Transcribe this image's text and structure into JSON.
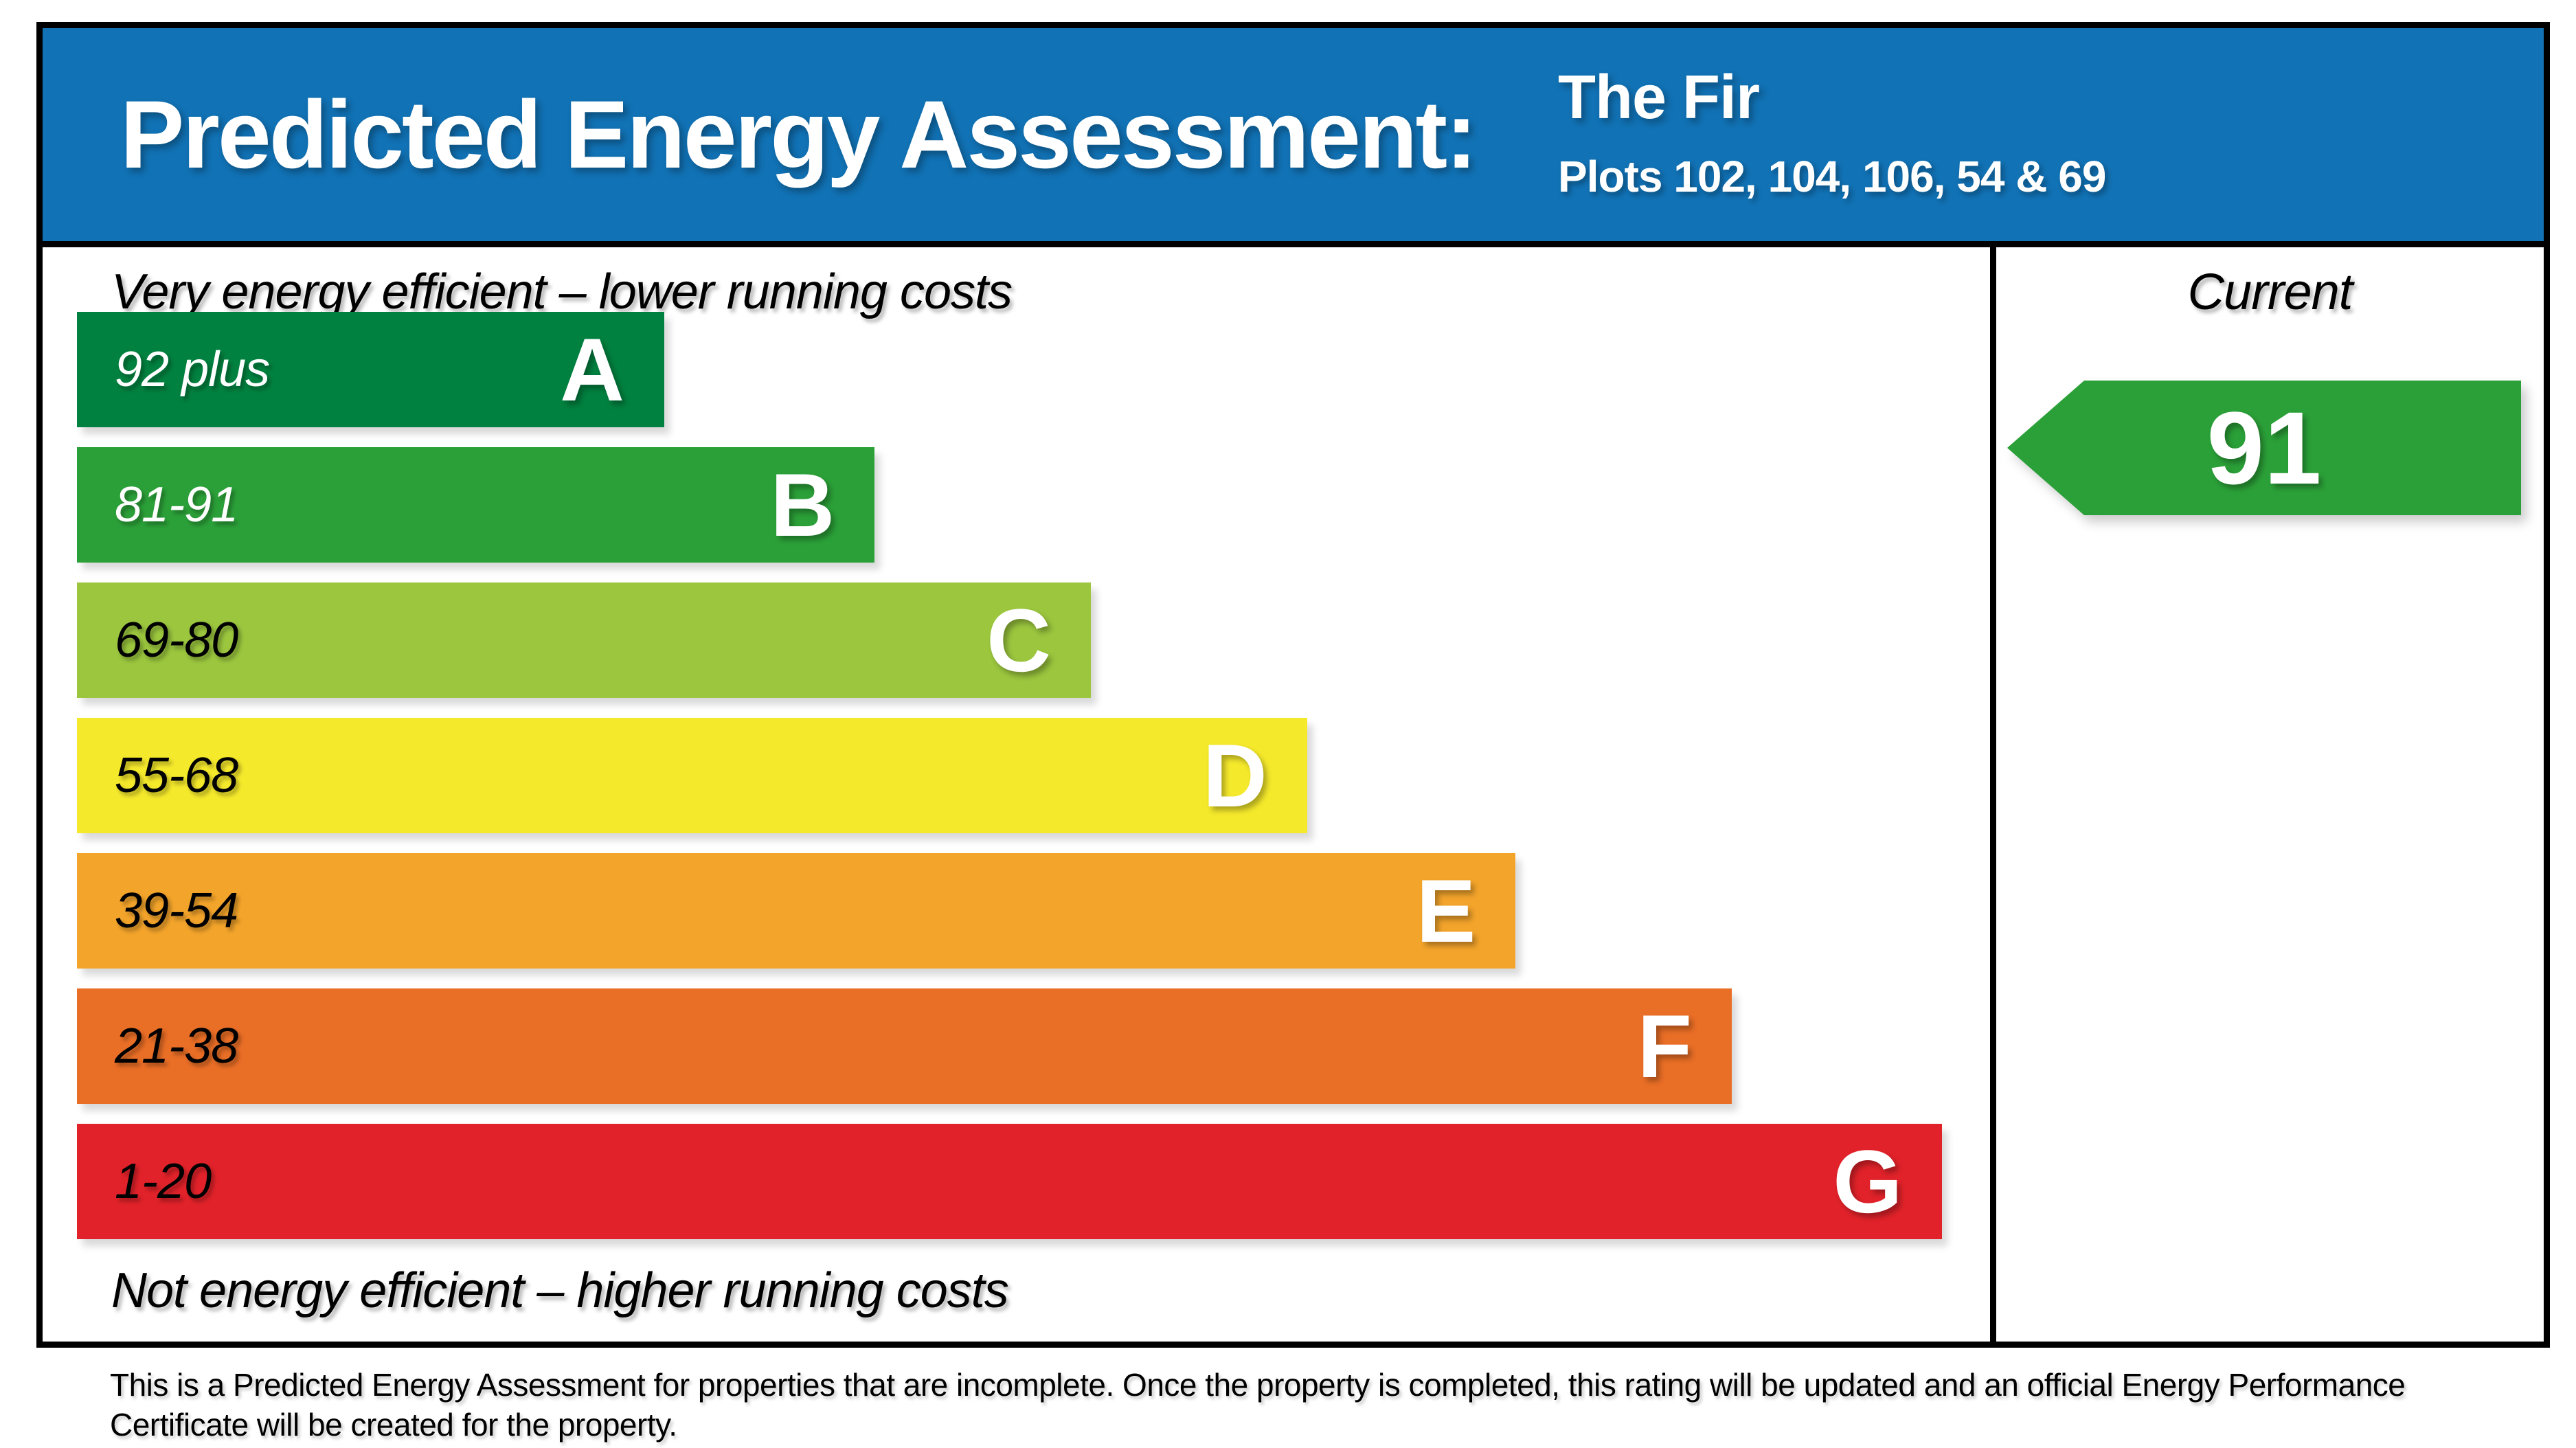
{
  "header": {
    "title": "Predicted Energy Assessment:",
    "property_name": "The Fir",
    "plots": "Plots 102, 104, 106, 54 & 69",
    "background_color": "#1172B5"
  },
  "chart_data": {
    "type": "bar",
    "title": "Predicted Energy Assessment",
    "top_caption": "Very energy efficient – lower running costs",
    "bottom_caption": "Not energy efficient – higher running costs",
    "column_header": "Current",
    "current_rating": "91",
    "arrow_color": "#2BA038",
    "bands": [
      {
        "letter": "A",
        "range": "92 plus",
        "color": "#00813F",
        "label_color": "#FFFFFF",
        "width_pct": 30.7
      },
      {
        "letter": "B",
        "range": "81-91",
        "color": "#2BA038",
        "label_color": "#FFFFFF",
        "width_pct": 41.7
      },
      {
        "letter": "C",
        "range": "69-80",
        "color": "#9BC63E",
        "label_color": "#000000",
        "width_pct": 53.0
      },
      {
        "letter": "D",
        "range": "55-68",
        "color": "#F5E92C",
        "label_color": "#000000",
        "width_pct": 64.3
      },
      {
        "letter": "E",
        "range": "39-54",
        "color": "#F3A42B",
        "label_color": "#000000",
        "width_pct": 75.2
      },
      {
        "letter": "F",
        "range": "21-38",
        "color": "#E96E26",
        "label_color": "#000000",
        "width_pct": 86.5
      },
      {
        "letter": "G",
        "range": "1-20",
        "color": "#E1222A",
        "label_color": "#000000",
        "width_pct": 97.5
      }
    ]
  },
  "footer": {
    "disclaimer_line1": "This is a Predicted Energy Assessment for properties that are incomplete. Once the property is completed, this rating will be updated and an official Energy Performance",
    "disclaimer_line2": "Certificate will be created for the property."
  }
}
